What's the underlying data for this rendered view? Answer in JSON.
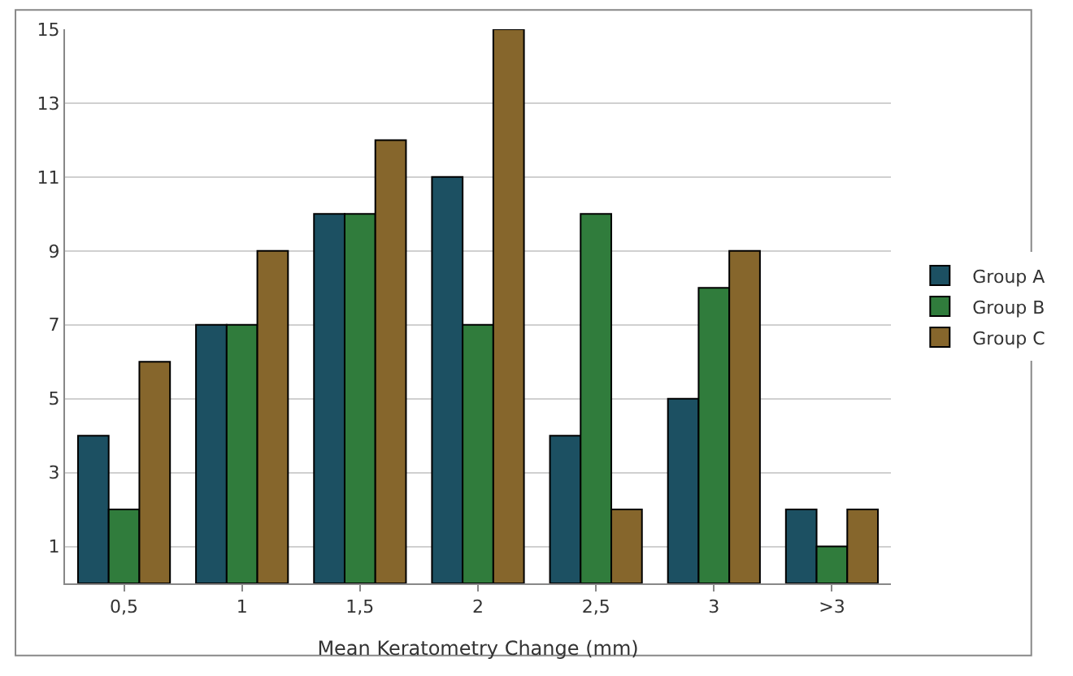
{
  "chart_data": {
    "type": "bar",
    "xlabel": "Mean Keratometry Change (mm)",
    "categories": [
      "0,5",
      "1",
      "1,5",
      "2",
      "2,5",
      "3",
      ">3"
    ],
    "series": [
      {
        "name": "Group A",
        "color": "#1c5062",
        "values": [
          4,
          7,
          10,
          11,
          4,
          5,
          2
        ]
      },
      {
        "name": "Group B",
        "color": "#307c3c",
        "values": [
          2,
          7,
          10,
          7,
          10,
          8,
          1
        ]
      },
      {
        "name": "Group C",
        "color": "#86662c",
        "values": [
          6,
          9,
          12,
          15,
          2,
          9,
          2
        ]
      }
    ],
    "ylim": [
      0,
      15
    ],
    "yticks": [
      1,
      3,
      5,
      7,
      9,
      11,
      13,
      15
    ],
    "grid": "y",
    "legend": "right"
  }
}
